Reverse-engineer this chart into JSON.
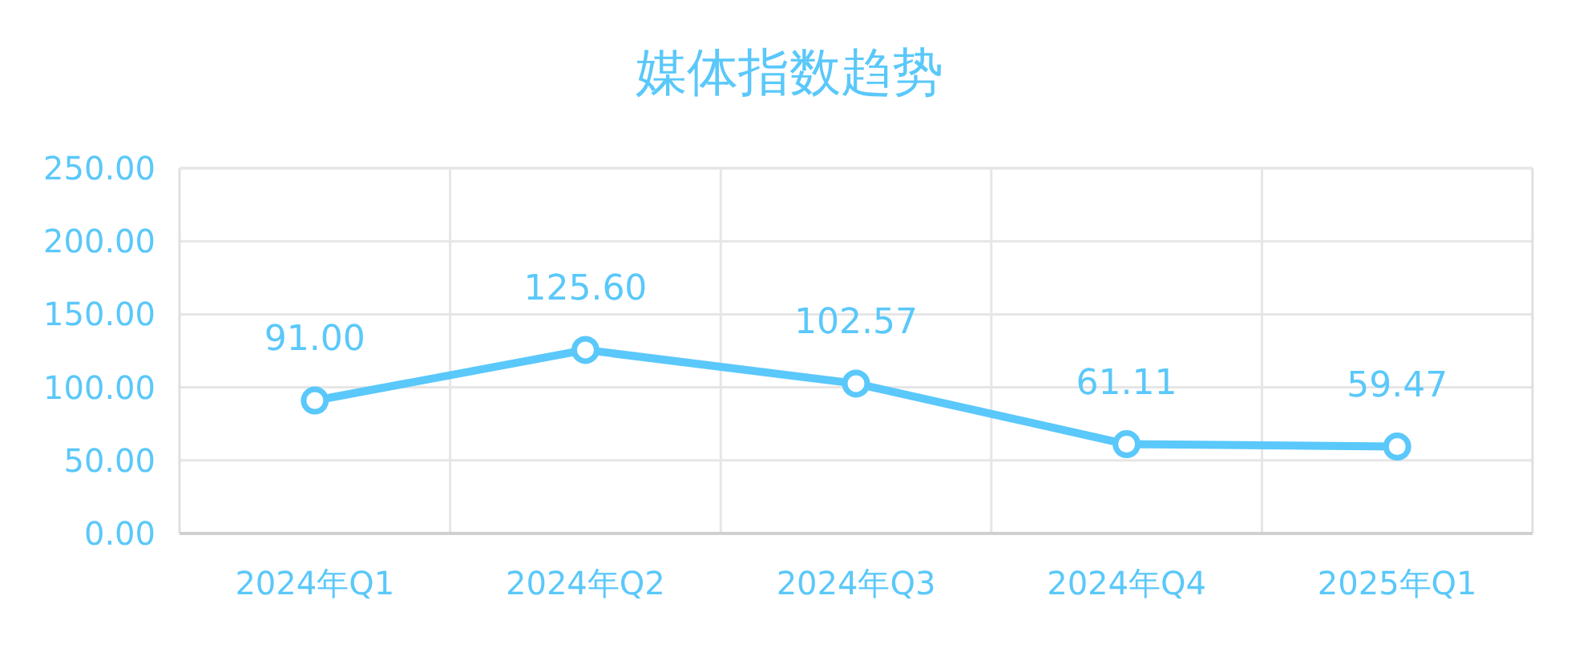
{
  "chart_data": {
    "type": "line",
    "title": "媒体指数趋势",
    "categories": [
      "2024年Q1",
      "2024年Q2",
      "2024年Q3",
      "2024年Q4",
      "2025年Q1"
    ],
    "values": [
      91.0,
      125.6,
      102.57,
      61.11,
      59.47
    ],
    "value_labels": [
      "91.00",
      "125.60",
      "102.57",
      "61.11",
      "59.47"
    ],
    "color": "#5ac8fa",
    "ylim": [
      0,
      250
    ],
    "yticks": [
      {
        "value": 0,
        "label": "0.00"
      },
      {
        "value": 50,
        "label": "50.00"
      },
      {
        "value": 100,
        "label": "100.00"
      },
      {
        "value": 150,
        "label": "150.00"
      },
      {
        "value": 200,
        "label": "200.00"
      },
      {
        "value": 250,
        "label": "250.00"
      }
    ],
    "grid": true,
    "marker": "circle",
    "line_style": "solid"
  }
}
